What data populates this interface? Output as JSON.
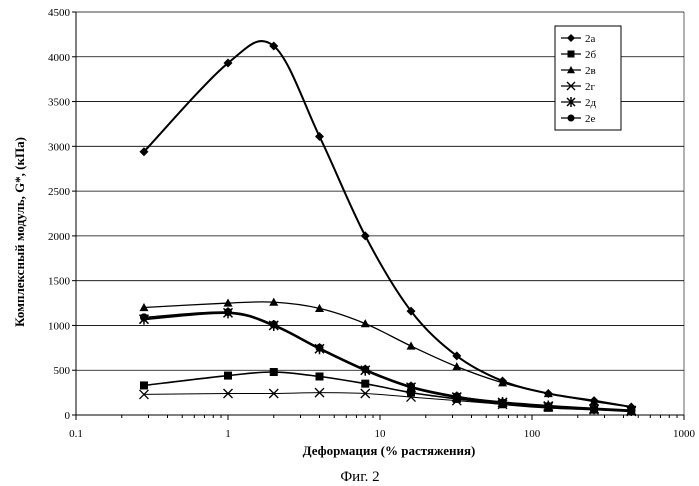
{
  "caption": "Фиг. 2",
  "chart_data": {
    "type": "line",
    "title": "",
    "xlabel": "Деформация (% растяжения)",
    "ylabel": "Комплексный модуль, G*, (кПа)",
    "xscale": "log",
    "xlim": [
      0.1,
      1000
    ],
    "ylim": [
      0,
      4500
    ],
    "xticks": [
      "0.1",
      "1",
      "10",
      "100",
      "1000"
    ],
    "yticks": [
      "0",
      "500",
      "1000",
      "1500",
      "2000",
      "2500",
      "3000",
      "3500",
      "4000",
      "4500"
    ],
    "grid": "horizontal",
    "legend_position": "top-right",
    "series": [
      {
        "name": "2а",
        "marker": "diamond",
        "x": [
          0.28,
          1,
          2,
          4,
          8,
          16,
          32,
          64,
          128,
          256,
          450
        ],
        "y": [
          2940,
          3930,
          4120,
          3110,
          2000,
          1160,
          660,
          380,
          240,
          160,
          90
        ]
      },
      {
        "name": "2б",
        "marker": "square",
        "x": [
          0.28,
          1,
          2,
          4,
          8,
          16,
          32,
          64,
          128,
          256,
          450
        ],
        "y": [
          330,
          440,
          480,
          430,
          350,
          250,
          180,
          120,
          80,
          60,
          40
        ]
      },
      {
        "name": "2в",
        "marker": "triangle",
        "x": [
          0.28,
          1,
          2,
          4,
          8,
          16,
          32,
          64,
          128,
          256,
          450
        ],
        "y": [
          1200,
          1250,
          1260,
          1190,
          1020,
          770,
          540,
          360,
          240,
          150,
          90
        ]
      },
      {
        "name": "2г",
        "marker": "x",
        "x": [
          0.28,
          1,
          2,
          4,
          8,
          16,
          32,
          64,
          128,
          256,
          450
        ],
        "y": [
          230,
          240,
          240,
          250,
          240,
          200,
          160,
          120,
          90,
          60,
          40
        ]
      },
      {
        "name": "2д",
        "marker": "star",
        "x": [
          0.28,
          1,
          2,
          4,
          8,
          16,
          32,
          64,
          128,
          256,
          450
        ],
        "y": [
          1070,
          1140,
          1000,
          740,
          500,
          310,
          200,
          140,
          100,
          70,
          50
        ]
      },
      {
        "name": "2е",
        "marker": "circle",
        "x": [
          0.28,
          1,
          2,
          4,
          8,
          16,
          32,
          64,
          128,
          256,
          450
        ],
        "y": [
          1090,
          1150,
          1010,
          750,
          510,
          320,
          210,
          140,
          100,
          70,
          50
        ]
      }
    ]
  }
}
